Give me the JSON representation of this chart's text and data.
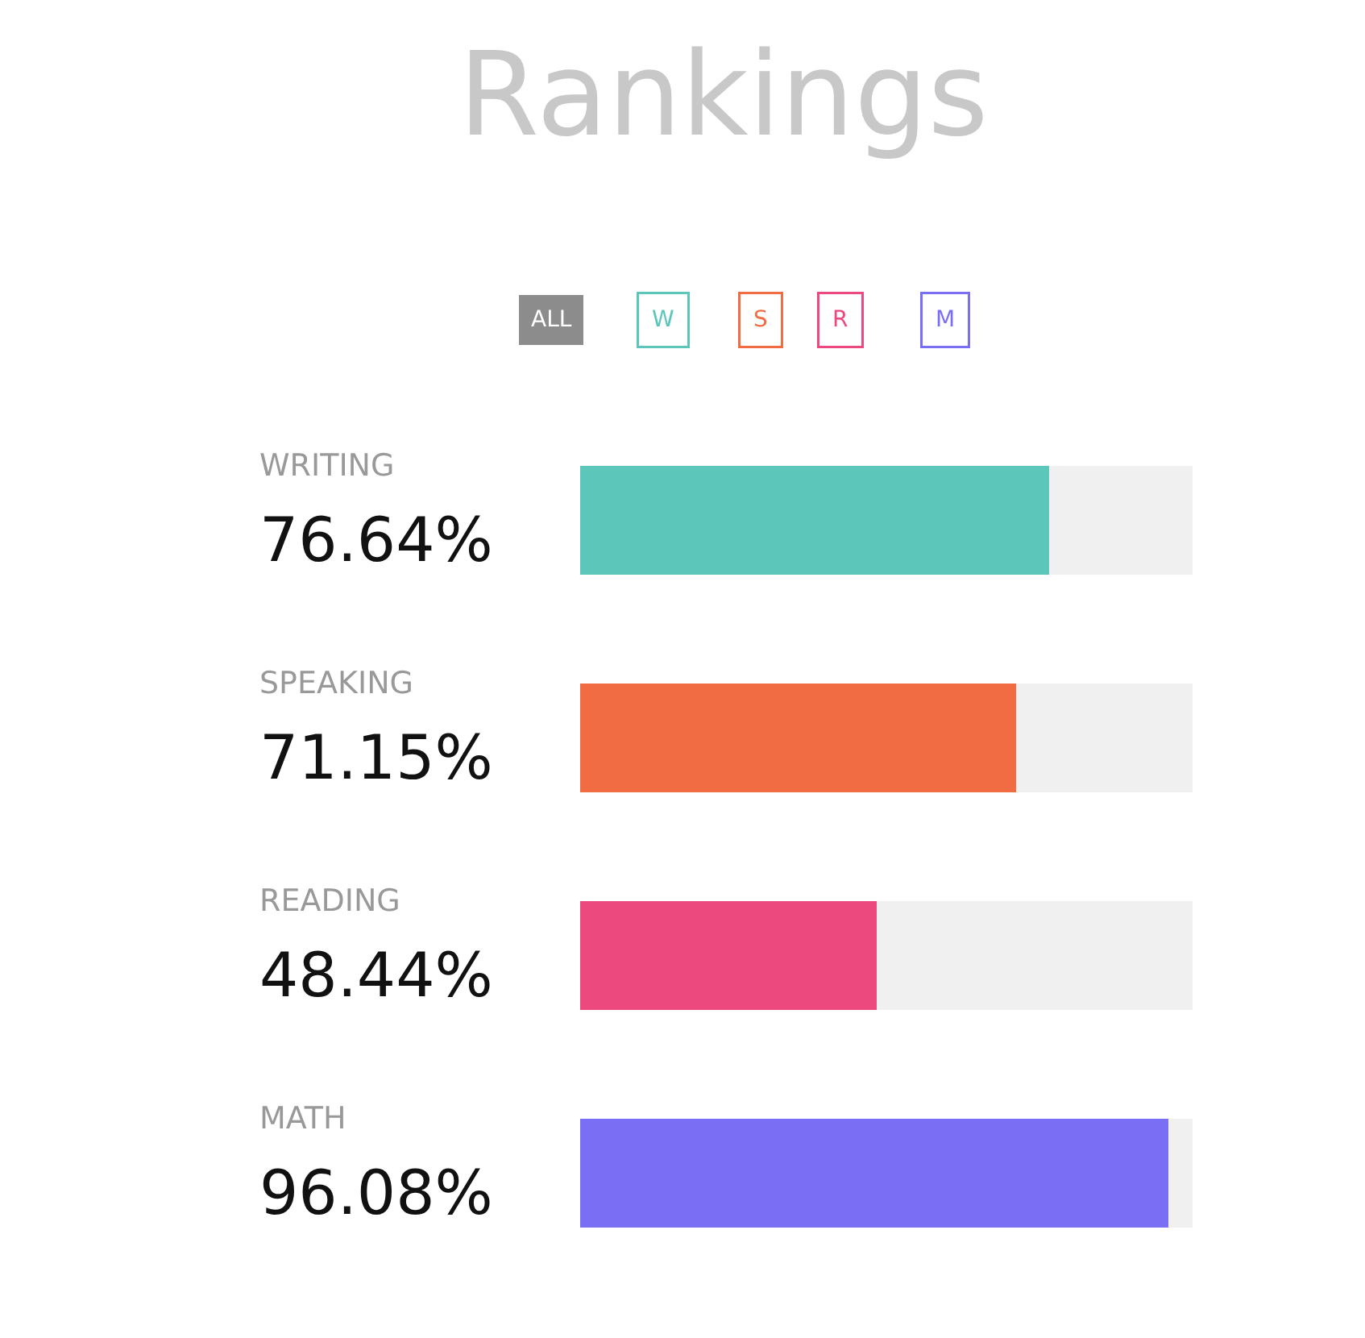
{
  "chart_data": {
    "type": "bar",
    "title": "Rankings",
    "orientation": "horizontal",
    "stacked": true,
    "categories": [
      "WRITING",
      "SPEAKING",
      "READING",
      "MATH"
    ],
    "series": [
      {
        "colors": [
          "#5cc6bb",
          "#f26c43",
          "#ec4a7f",
          "#7a6ef5"
        ],
        "values": [
          76.64,
          71.15,
          48.44,
          96.08
        ],
        "value_labels": [
          "76.64%",
          "71.15%",
          "48.44%",
          "96.08%"
        ]
      },
      {
        "color": "#f0f0f0",
        "values": [
          23.36,
          28.85,
          51.56,
          3.92
        ]
      }
    ],
    "xlim": [
      0,
      100
    ],
    "annotations": [
      "ALL",
      "W",
      "S",
      "R",
      "M"
    ]
  }
}
